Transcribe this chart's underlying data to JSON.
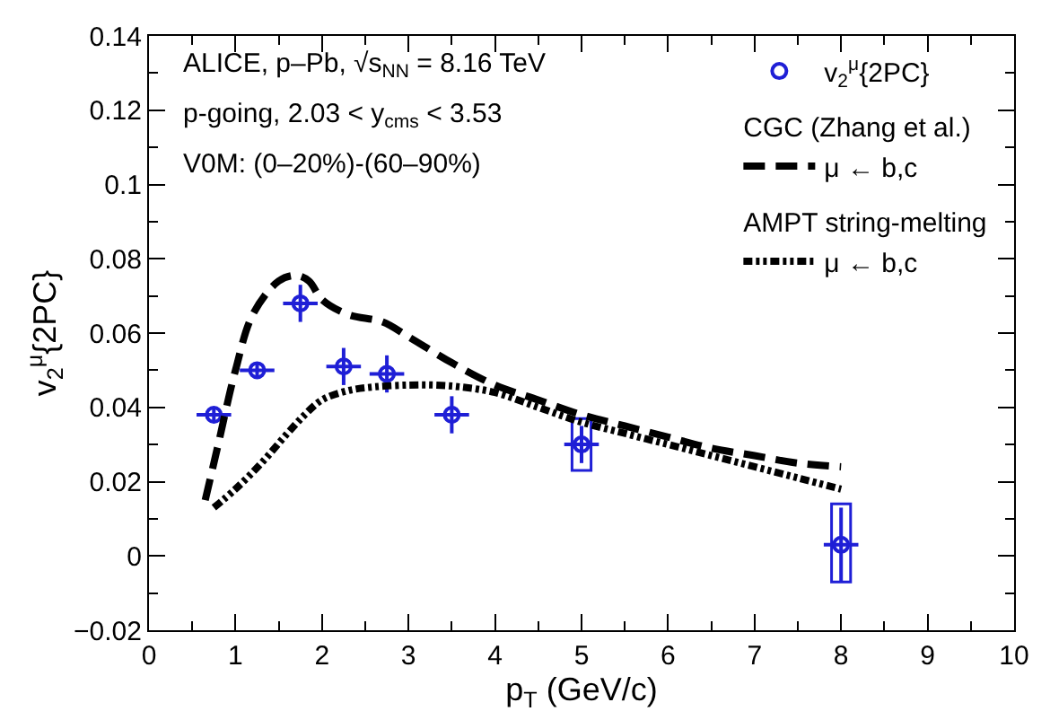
{
  "chart_data": {
    "type": "scatter",
    "xlabel": "p$_{T}$ (GeV/c)",
    "ylabel": "v$_{2}$$^{μ}${2PC}",
    "xlim": [
      0,
      10
    ],
    "xticks": [
      0,
      1,
      2,
      3,
      4,
      5,
      6,
      7,
      8,
      9,
      10
    ],
    "ylim": [
      -0.02,
      0.14
    ],
    "yticks": [
      -0.02,
      0,
      0.02,
      0.04,
      0.06,
      0.08,
      0.1,
      0.12,
      0.14
    ],
    "legend": "top right",
    "annotations": [
      "ALICE, p–Pb, √s$_{NN}$ = 8.16 TeV",
      "p-going, 2.03 < y$_{cms}$ < 3.53",
      "V0M: (0–20%)-(60–90%)",
      "CGC (Zhang et al.)",
      "AMPT string-melting"
    ],
    "series": [
      {
        "name": "v$_{2}$$^{μ}${2PC}",
        "color": "#1f1fd6",
        "marker": "circle",
        "x": [
          0.75,
          1.25,
          1.75,
          2.25,
          2.75,
          3.5,
          5,
          8
        ],
        "values": [
          0.038,
          0.05,
          0.068,
          0.051,
          0.049,
          0.038,
          0.03,
          0.003
        ],
        "errors": [
          0.002,
          0.002,
          0.005,
          0.005,
          0.005,
          0.005,
          0.005,
          0.01
        ],
        "xerrors": [
          0.2,
          0.2,
          0.2,
          0.2,
          0.2,
          0.2,
          0.2,
          0.2
        ]
      },
      {
        "type": "bar",
        "color": "#1f1fd6",
        "x": [
          5,
          8
        ],
        "base": [
          0.023,
          -0.007
        ],
        "values": [
          0.014,
          0.021
        ]
      },
      {
        "name": "μ ← b,c",
        "type": "line",
        "color": "#000000",
        "line_style": "dashed",
        "marker": "none",
        "x": [
          0.65,
          0.8,
          1.0,
          1.2,
          1.5,
          1.7,
          1.85,
          2.0,
          2.3,
          2.7,
          3.0,
          3.5,
          4.0,
          4.5,
          5.0,
          5.5,
          6.0,
          6.5,
          7.0,
          7.5,
          8.0
        ],
        "values": [
          0.015,
          0.03,
          0.05,
          0.065,
          0.074,
          0.0755,
          0.074,
          0.069,
          0.065,
          0.063,
          0.059,
          0.052,
          0.046,
          0.042,
          0.038,
          0.035,
          0.032,
          0.029,
          0.027,
          0.025,
          0.024
        ]
      },
      {
        "name": "μ ← b,c",
        "type": "line",
        "color": "#000000",
        "line_style": "dotted",
        "marker": "none",
        "x": [
          0.75,
          1.0,
          1.3,
          1.6,
          1.8,
          2.0,
          2.3,
          2.6,
          3.0,
          3.3,
          3.6,
          4.0,
          4.5,
          5.0,
          5.5,
          6.0,
          6.5,
          7.0,
          7.5,
          8.0
        ],
        "values": [
          0.013,
          0.018,
          0.025,
          0.033,
          0.038,
          0.042,
          0.0445,
          0.0455,
          0.046,
          0.046,
          0.0455,
          0.044,
          0.04,
          0.036,
          0.033,
          0.03,
          0.027,
          0.024,
          0.021,
          0.018
        ]
      }
    ]
  }
}
